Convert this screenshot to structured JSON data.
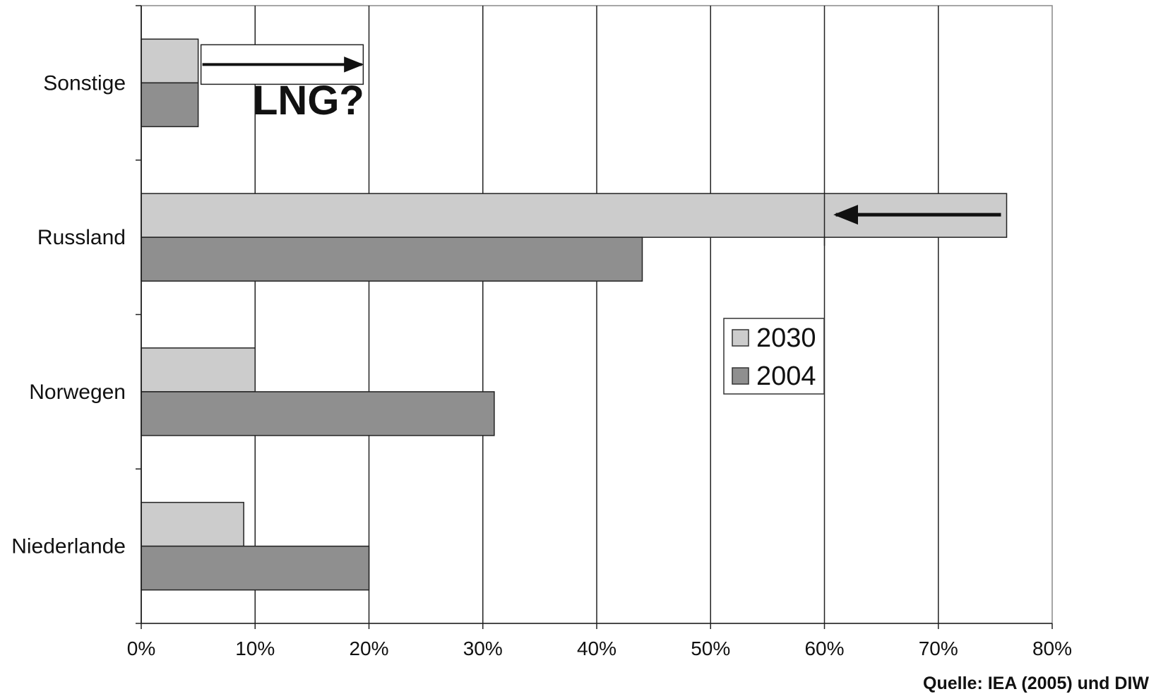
{
  "chart_data": {
    "type": "bar",
    "orientation": "horizontal",
    "categories": [
      "Sonstige",
      "Russland",
      "Norwegen",
      "Niederlande"
    ],
    "series": [
      {
        "name": "2030",
        "values": [
          5,
          76,
          10,
          9
        ],
        "color": "#cccccc"
      },
      {
        "name": "2004",
        "values": [
          5,
          44,
          31,
          20
        ],
        "color": "#8f8f8f"
      }
    ],
    "xlim": [
      0,
      80
    ],
    "x_ticks": [
      0,
      10,
      20,
      30,
      40,
      50,
      60,
      70,
      80
    ],
    "x_tick_labels": [
      "0%",
      "10%",
      "20%",
      "30%",
      "40%",
      "50%",
      "60%",
      "70%",
      "80%"
    ],
    "grid": "vertical",
    "legend": {
      "placement": "center-right",
      "entries": [
        "2030",
        "2004"
      ]
    },
    "annotations": {
      "lng_text": "LNG?",
      "lng_arrow": {
        "category": "Sonstige",
        "from": 5,
        "to": 19
      },
      "russland_arrow": {
        "category": "Russland",
        "from": 76,
        "to": 61,
        "marker_at": 60
      }
    },
    "source": "Quelle: IEA (2005) und DIW"
  }
}
